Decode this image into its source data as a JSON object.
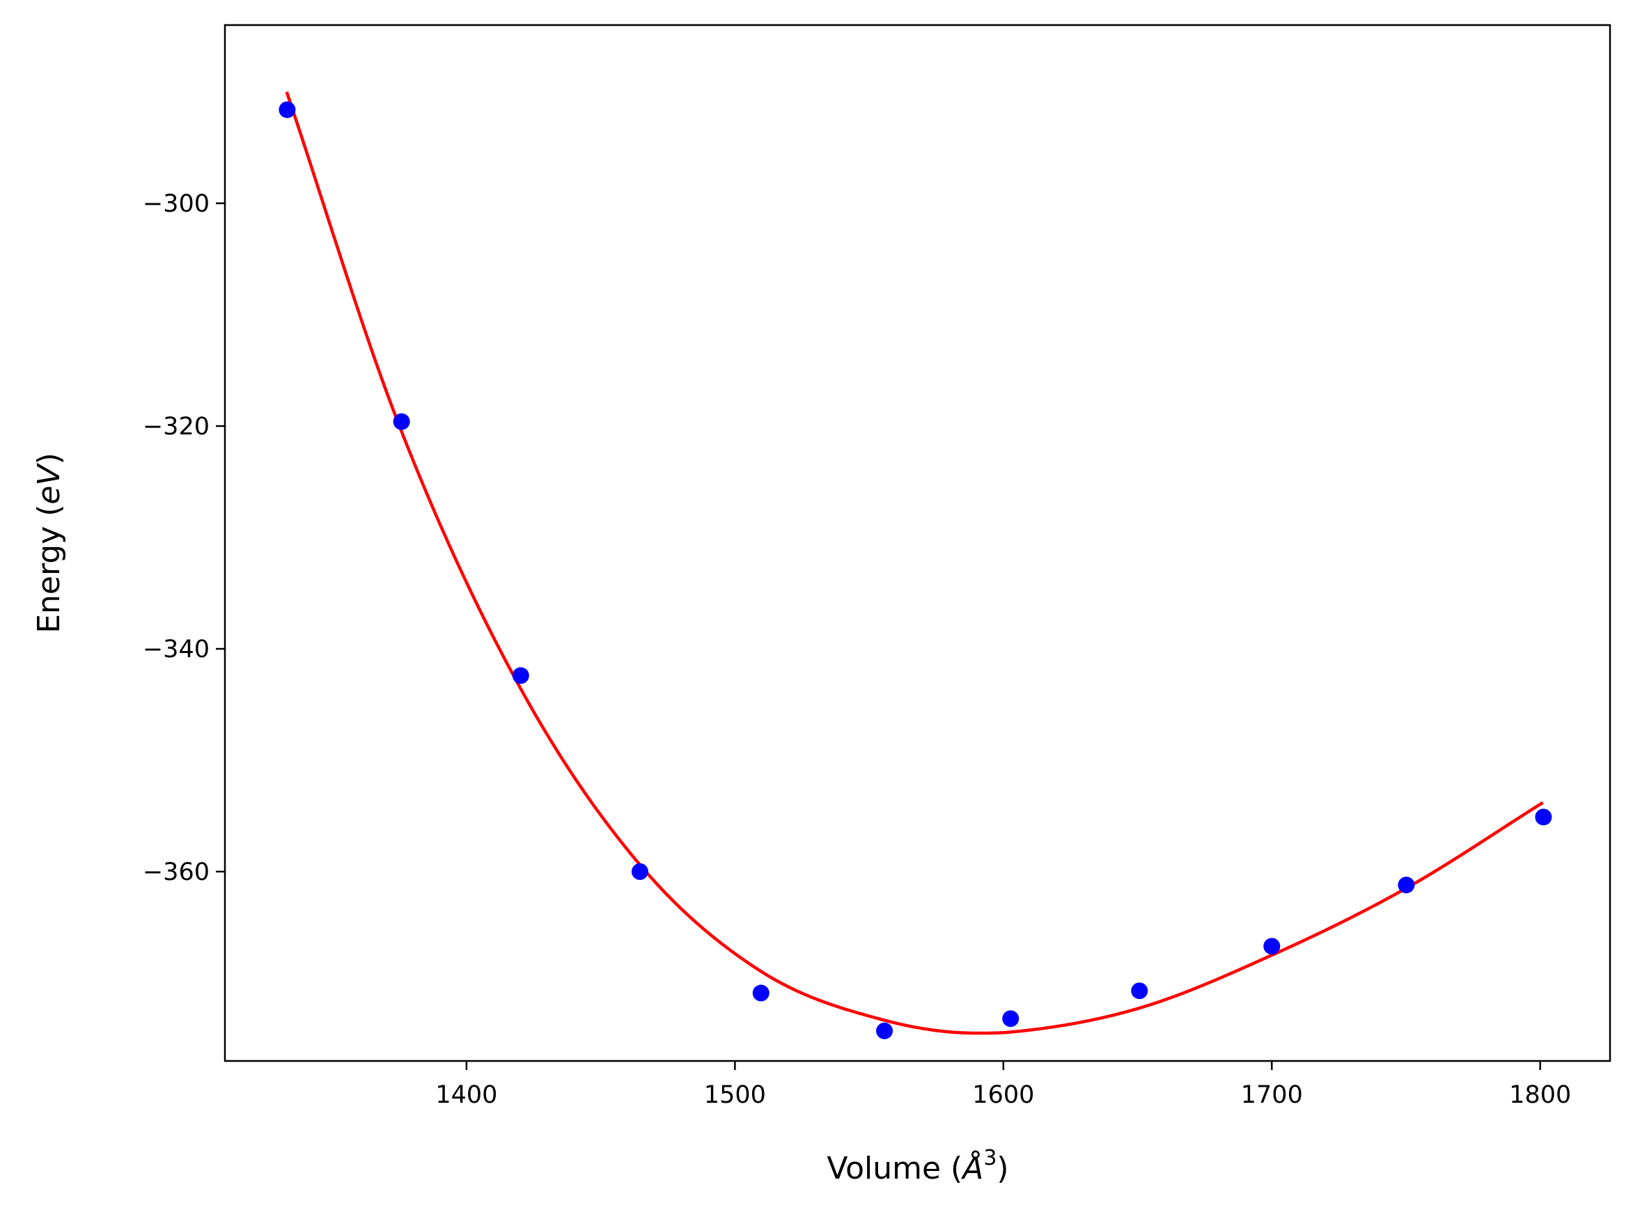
{
  "chart_data": {
    "type": "scatter",
    "title": "",
    "xlabel": "Volume (Å³)",
    "xlabel_parts": {
      "prefix": "Volume (",
      "unit": "Å",
      "exponent": "3",
      "suffix": ")"
    },
    "ylabel": "Energy (eV)",
    "ylabel_parts": {
      "prefix": "Energy (",
      "unit": "eV",
      "suffix": ")"
    },
    "xlim": [
      1310,
      1826
    ],
    "ylim": [
      -377,
      -284
    ],
    "xticks": [
      1400,
      1500,
      1600,
      1700,
      1800
    ],
    "xtick_labels": [
      "1400",
      "1500",
      "1600",
      "1700",
      "1800"
    ],
    "yticks": [
      -300,
      -320,
      -340,
      -360
    ],
    "ytick_labels": [
      "−300",
      "−320",
      "−340",
      "−360"
    ],
    "grid": false,
    "legend": "none",
    "series": [
      {
        "kind": "points",
        "color": "#0000ff",
        "x": [
          1333.2,
          1375.8,
          1420.2,
          1464.6,
          1509.7,
          1555.7,
          1602.7,
          1650.7,
          1700.0,
          1750.1,
          1801.2
        ],
        "y": [
          -291.6,
          -319.6,
          -342.4,
          -360.0,
          -370.9,
          -374.3,
          -373.2,
          -370.7,
          -366.7,
          -361.2,
          -355.1
        ]
      },
      {
        "kind": "fit-curve",
        "color": "#ff0000",
        "x": [
          1333,
          1375,
          1420,
          1465,
          1510,
          1555,
          1590,
          1603,
          1650,
          1700,
          1750,
          1801
        ],
        "y": [
          -290.0,
          -320.0,
          -343.5,
          -359.5,
          -369.0,
          -373.3,
          -374.5,
          -374.4,
          -372.3,
          -367.5,
          -361.5,
          -353.8
        ]
      }
    ]
  }
}
